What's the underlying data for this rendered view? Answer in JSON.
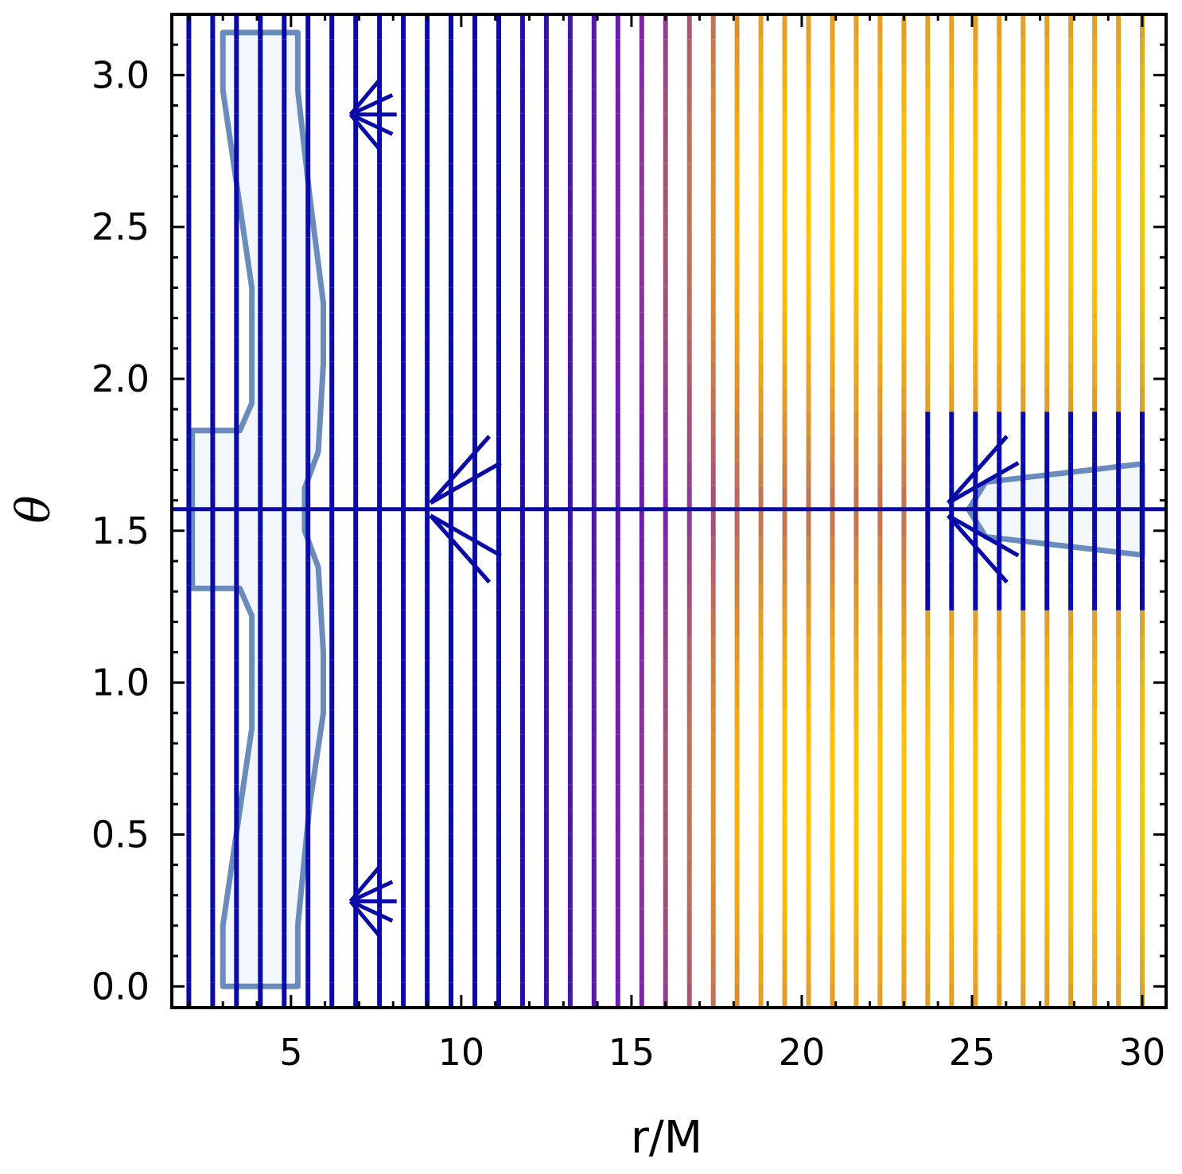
{
  "chart_data": {
    "type": "vector field",
    "xlabel": "r/M",
    "ylabel": "θ",
    "xlim": [
      1.5,
      30.7
    ],
    "ylim": [
      -0.07,
      3.2
    ],
    "xticks": [
      5,
      10,
      15,
      20,
      25,
      30
    ],
    "xtick_labels": [
      "5",
      "10",
      "15",
      "20",
      "25",
      "30"
    ],
    "yticks": [
      0.0,
      0.5,
      1.0,
      1.5,
      2.0,
      2.5,
      3.0
    ],
    "ytick_labels": [
      "0.0",
      "0.5",
      "1.0",
      "1.5",
      "2.0",
      "2.5",
      "3.0"
    ],
    "grid": false,
    "legend": "none",
    "field_columns_r": [
      2.0,
      2.7,
      3.4,
      4.1,
      4.8,
      5.5,
      6.2,
      6.9,
      7.6,
      8.3,
      9.0,
      9.7,
      10.4,
      11.1,
      11.8,
      12.5,
      13.2,
      13.9,
      14.6,
      15.3,
      16.0,
      16.7,
      17.4,
      18.1,
      18.8,
      19.5,
      20.2,
      20.9,
      21.6,
      22.3,
      23.0,
      23.7,
      24.4,
      25.1,
      25.8,
      26.5,
      27.2,
      27.9,
      28.6,
      29.3,
      30.0
    ],
    "equatorial_line_theta": 1.5708,
    "converging_points": [
      {
        "r": 9.1,
        "theta": 1.5708
      },
      {
        "r": 24.3,
        "theta": 1.5708
      }
    ],
    "color_scale": {
      "low": "#0a0aa8",
      "mid": "#7a1fb0",
      "high": "#ffc400"
    },
    "region_fill": "#f2f7fd",
    "region_edge": "#6a8cbc",
    "inner_region_boundary": [
      [
        3.0,
        0.0
      ],
      [
        5.2,
        0.0
      ],
      [
        5.2,
        0.2
      ],
      [
        5.55,
        0.6
      ],
      [
        5.95,
        0.9
      ],
      [
        5.95,
        1.1
      ],
      [
        5.8,
        1.38
      ],
      [
        5.4,
        1.5
      ],
      [
        5.4,
        1.64
      ],
      [
        5.8,
        1.76
      ],
      [
        5.95,
        2.05
      ],
      [
        5.95,
        2.25
      ],
      [
        5.55,
        2.6
      ],
      [
        5.2,
        2.95
      ],
      [
        5.2,
        3.14
      ],
      [
        3.0,
        3.14
      ],
      [
        3.0,
        2.95
      ],
      [
        3.85,
        2.3
      ],
      [
        3.85,
        1.92
      ],
      [
        3.5,
        1.83
      ],
      [
        2.1,
        1.83
      ],
      [
        2.1,
        1.31
      ],
      [
        3.5,
        1.31
      ],
      [
        3.85,
        1.22
      ],
      [
        3.85,
        0.85
      ],
      [
        3.0,
        0.2
      ]
    ],
    "outer_region_boundary": [
      [
        24.9,
        1.57
      ],
      [
        25.4,
        1.66
      ],
      [
        30.0,
        1.72
      ],
      [
        30.0,
        1.42
      ],
      [
        25.4,
        1.48
      ]
    ]
  }
}
